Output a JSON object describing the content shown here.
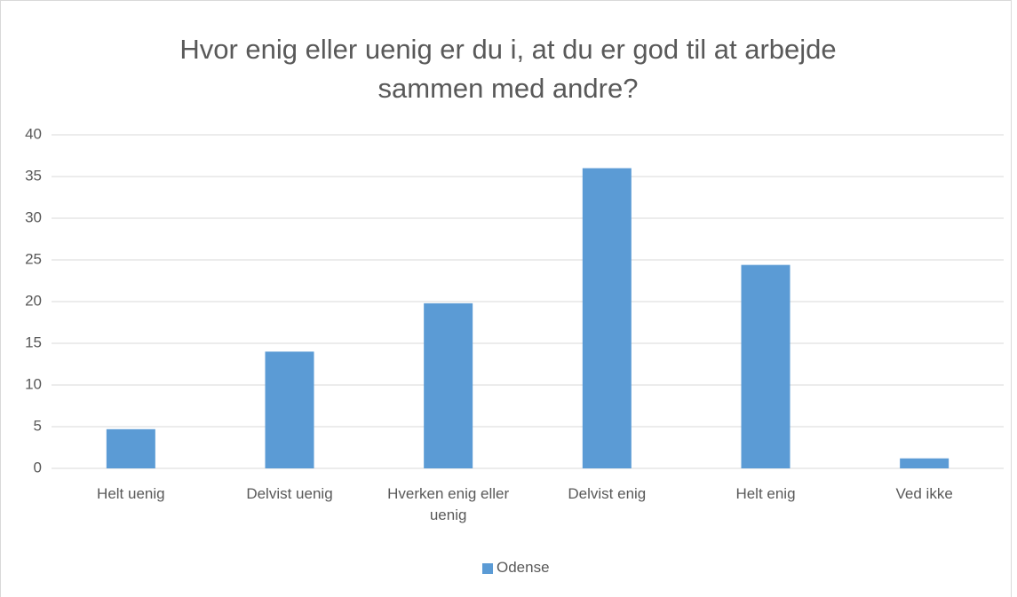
{
  "chart_data": {
    "type": "bar",
    "title": "Hvor enig eller uenig er du i, at du er god til at arbejde sammen med andre?",
    "categories": [
      "Helt uenig",
      "Delvist uenig",
      "Hverken enig eller uenig",
      "Delvist enig",
      "Helt enig",
      "Ved ikke"
    ],
    "series": [
      {
        "name": "Odense",
        "color": "#5b9bd5",
        "values": [
          4.7,
          14,
          19.8,
          36,
          24.4,
          1.2
        ]
      }
    ],
    "ylim": [
      0,
      40
    ],
    "yticks": [
      0,
      5,
      10,
      15,
      20,
      25,
      30,
      35,
      40
    ],
    "grid": true,
    "legend": "bottom"
  }
}
